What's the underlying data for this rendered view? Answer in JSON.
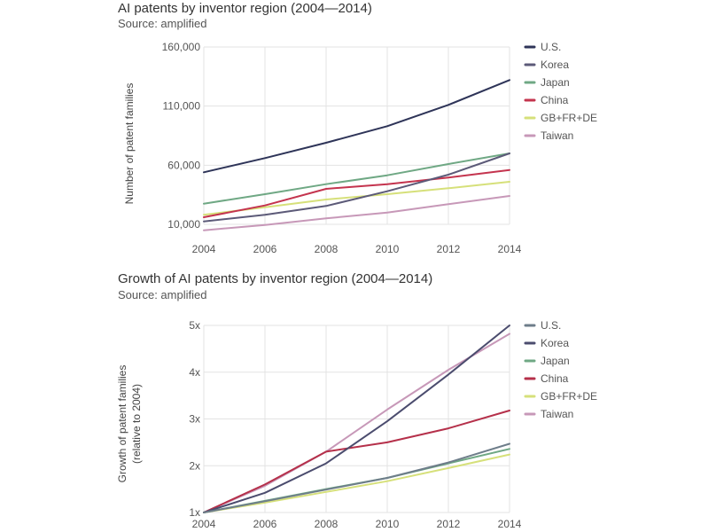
{
  "chart_data": [
    {
      "type": "line",
      "title": "AI patents by inventor region (2004—2014)",
      "subtitle": "Source: amplified",
      "xlabel": "",
      "ylabel": "Number of patent families",
      "x": [
        2004,
        2006,
        2008,
        2010,
        2012,
        2014
      ],
      "xticks": [
        "2004",
        "2006",
        "2008",
        "2010",
        "2012",
        "2014"
      ],
      "xlim": [
        2004,
        2014
      ],
      "ylim": [
        10000,
        160000
      ],
      "yticks": [
        10000,
        60000,
        110000,
        160000
      ],
      "ytick_labels": [
        "10,000",
        "60,000",
        "110,000",
        "160,000"
      ],
      "grid": true,
      "legend": "right",
      "series": [
        {
          "name": "U.S.",
          "color": "#2e3458",
          "values": [
            54000,
            66000,
            79000,
            93000,
            111000,
            132000
          ]
        },
        {
          "name": "Korea",
          "color": "#5c5a78",
          "values": [
            12500,
            18000,
            25500,
            38000,
            52000,
            70000
          ]
        },
        {
          "name": "Japan",
          "color": "#6fa884",
          "values": [
            27500,
            35500,
            44000,
            51500,
            61000,
            70000
          ]
        },
        {
          "name": "China",
          "color": "#c4344e",
          "values": [
            16000,
            26000,
            40000,
            44000,
            49500,
            56000
          ]
        },
        {
          "name": "GB+FR+DE",
          "color": "#d6e07a",
          "values": [
            18000,
            24500,
            31000,
            35500,
            40500,
            46000
          ]
        },
        {
          "name": "Taiwan",
          "color": "#c798b8",
          "values": [
            5000,
            9500,
            15000,
            20000,
            27000,
            34000
          ]
        }
      ]
    },
    {
      "type": "line",
      "title": "Growth of AI patents by inventor region (2004—2014)",
      "subtitle": "Source: amplified",
      "xlabel": "",
      "ylabel": [
        "Growth of patent families",
        "(relative to 2004)"
      ],
      "x": [
        2004,
        2006,
        2008,
        2010,
        2012,
        2014
      ],
      "xticks": [
        "2004",
        "2006",
        "2008",
        "2010",
        "2012",
        "2014"
      ],
      "xlim": [
        2004,
        2014
      ],
      "ylim": [
        1,
        5
      ],
      "yticks": [
        1,
        2,
        3,
        4,
        5
      ],
      "ytick_labels": [
        "1x",
        "2x",
        "3x",
        "4x",
        "5x"
      ],
      "grid": true,
      "legend": "right",
      "series": [
        {
          "name": "U.S.",
          "color": "#6e7d8a",
          "values": [
            1,
            1.24,
            1.49,
            1.74,
            2.07,
            2.47
          ]
        },
        {
          "name": "Korea",
          "color": "#4b4c6e",
          "values": [
            1,
            1.42,
            2.05,
            2.95,
            3.95,
            5.0
          ]
        },
        {
          "name": "Japan",
          "color": "#6fa884",
          "values": [
            1,
            1.25,
            1.5,
            1.74,
            2.05,
            2.36
          ]
        },
        {
          "name": "China",
          "color": "#b5304a",
          "values": [
            1,
            1.6,
            2.3,
            2.5,
            2.8,
            3.18
          ]
        },
        {
          "name": "GB+FR+DE",
          "color": "#d6e07a",
          "values": [
            1,
            1.21,
            1.44,
            1.67,
            1.95,
            2.24
          ]
        },
        {
          "name": "Taiwan",
          "color": "#c798b8",
          "values": [
            1,
            1.57,
            2.3,
            3.2,
            4.05,
            4.82
          ]
        }
      ]
    }
  ]
}
